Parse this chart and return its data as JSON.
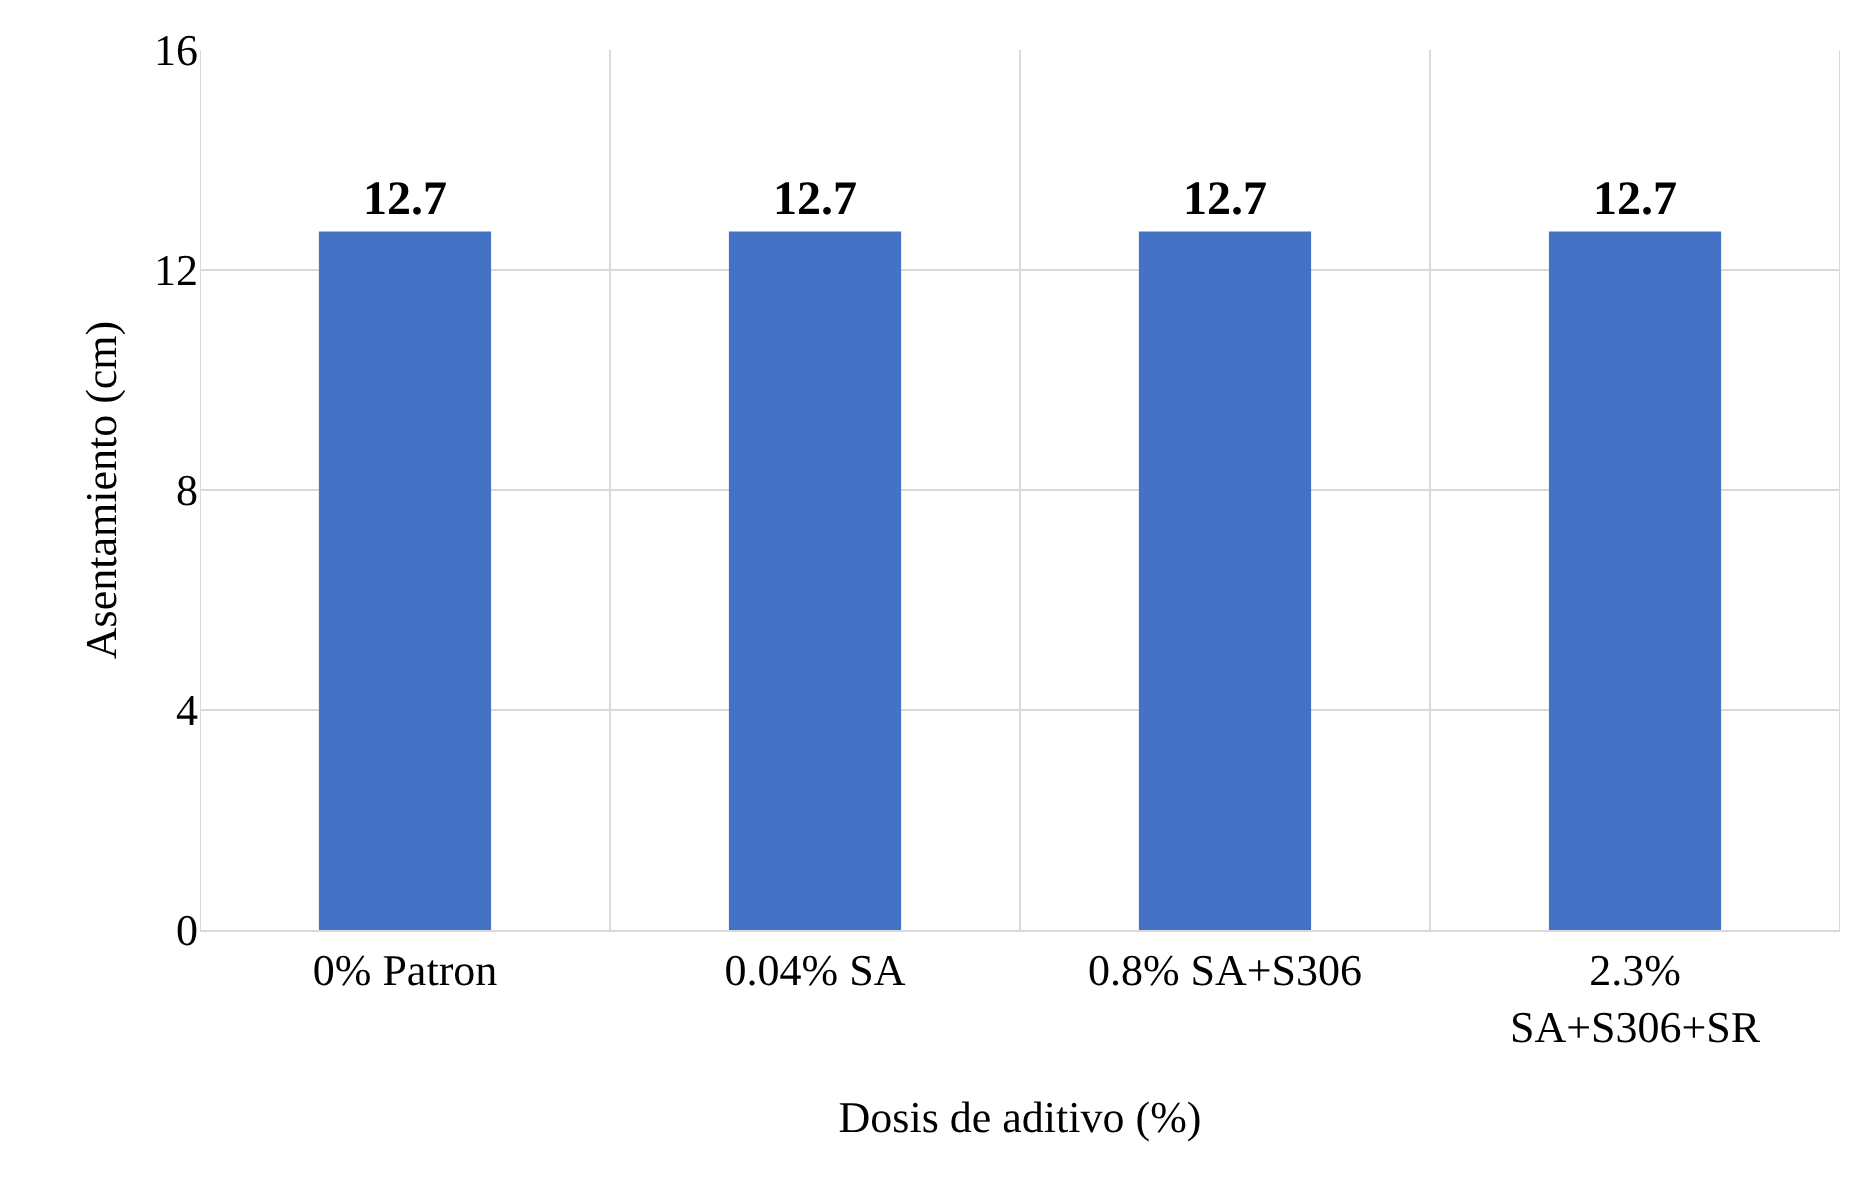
{
  "chart_data": {
    "type": "bar",
    "xlabel": "Dosis de aditivo (%)",
    "ylabel": "Asentamiento (cm)",
    "categories": [
      "0% Patron",
      "0.04% SA",
      "0.8% SA+S306",
      "2.3% SA+S306+SR"
    ],
    "values": [
      12.7,
      12.7,
      12.7,
      12.7
    ],
    "color": "#4472c4",
    "ylim": [
      0,
      16
    ],
    "yticks": [
      0,
      4,
      8,
      12,
      16
    ],
    "grid": true,
    "data_labels": true
  }
}
